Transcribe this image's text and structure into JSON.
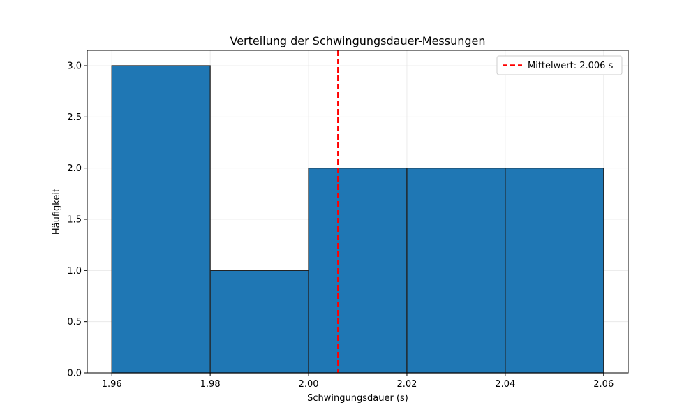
{
  "chart_data": {
    "type": "bar",
    "subtype": "histogram",
    "title": "Verteilung der Schwingungsdauer-Messungen",
    "xlabel": "Schwingungsdauer (s)",
    "ylabel": "Häufigkeit",
    "bins": [
      {
        "start": 1.96,
        "end": 1.98,
        "count": 3
      },
      {
        "start": 1.98,
        "end": 2.0,
        "count": 1
      },
      {
        "start": 2.0,
        "end": 2.02,
        "count": 2
      },
      {
        "start": 2.02,
        "end": 2.04,
        "count": 2
      },
      {
        "start": 2.04,
        "end": 2.06,
        "count": 2
      }
    ],
    "xlim": [
      1.955,
      2.065
    ],
    "ylim": [
      0,
      3.15
    ],
    "xticks": [
      "1.96",
      "1.98",
      "2.00",
      "2.02",
      "2.04",
      "2.06"
    ],
    "yticks": [
      "0.0",
      "0.5",
      "1.0",
      "1.5",
      "2.0",
      "2.5",
      "3.0"
    ],
    "mean_line": {
      "x": 2.006,
      "label": "Mittelwert: 2.006 s",
      "color": "#ff0000",
      "style": "dashed"
    },
    "bar_color": "#1f77b4",
    "bar_edge_color": "#222222",
    "grid": true,
    "legend_position": "top-right"
  }
}
